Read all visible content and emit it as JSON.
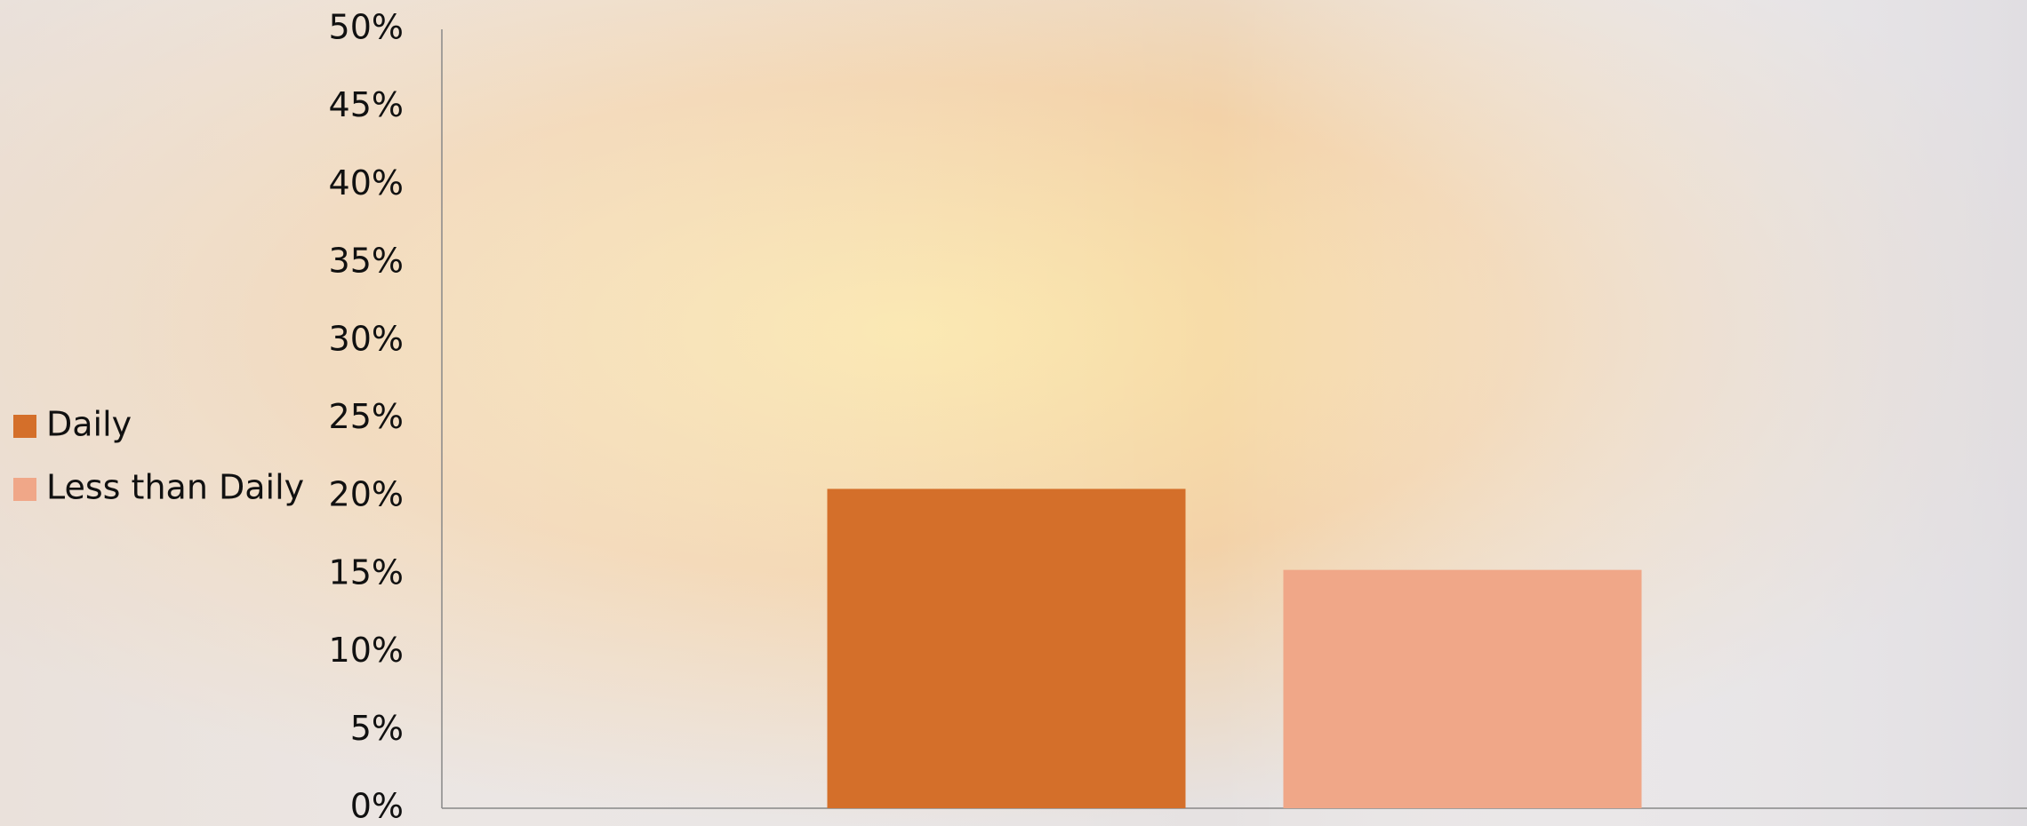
{
  "chart_data": {
    "type": "bar",
    "categories": [
      null
    ],
    "series": [
      {
        "name": "Daily",
        "color": "#d46f2a",
        "values": [
          20.5
        ]
      },
      {
        "name": "Less than Daily",
        "color": "#f0a788",
        "values": [
          15.3
        ]
      }
    ],
    "ylim": [
      0,
      50
    ],
    "yticks": [
      {
        "value": 0,
        "label": "0%"
      },
      {
        "value": 5,
        "label": "5%"
      },
      {
        "value": 10,
        "label": "10%"
      },
      {
        "value": 15,
        "label": "15%"
      },
      {
        "value": 20,
        "label": "20%"
      },
      {
        "value": 25,
        "label": "25%"
      },
      {
        "value": 30,
        "label": "30%"
      },
      {
        "value": 35,
        "label": "35%"
      },
      {
        "value": 40,
        "label": "40%"
      },
      {
        "value": 45,
        "label": "45%"
      },
      {
        "value": 50,
        "label": "50%"
      }
    ],
    "grid": false,
    "legend": "left"
  }
}
